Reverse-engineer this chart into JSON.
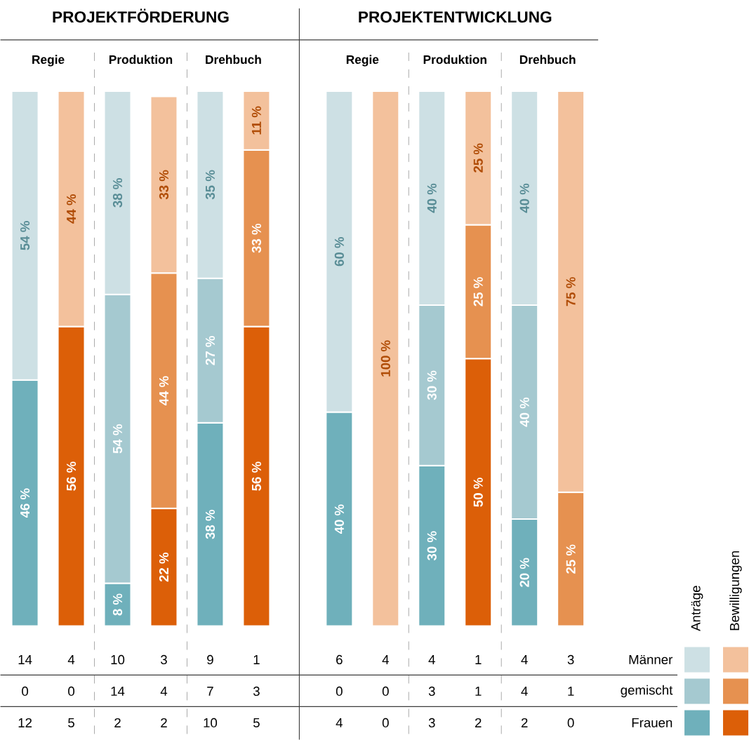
{
  "chart_data": [
    {
      "type": "bar",
      "title": "PROJEKTFÖRDERUNG",
      "stacked": true,
      "categories": [
        "Regie",
        null,
        "Produktion",
        null,
        "Drehbuch",
        null
      ],
      "ylim": [
        0,
        100
      ],
      "tick_labels": "x",
      "series": [
        {
          "color": "#6fb0bb",
          "values": [
            46,
            null,
            8,
            null,
            38,
            null
          ],
          "value_labels": [
            "46 %",
            null,
            "8 %",
            null,
            "38 %",
            null
          ]
        },
        {
          "color": "#dc5f08",
          "values": [
            null,
            56,
            null,
            22,
            null,
            56
          ],
          "value_labels": [
            null,
            "56 %",
            null,
            "22 %",
            null,
            "56 %"
          ]
        },
        {
          "color": "#a5c9d0",
          "values": [
            0,
            null,
            54,
            null,
            27,
            null
          ],
          "value_labels": [
            null,
            null,
            "54 %",
            null,
            "27 %",
            null
          ]
        },
        {
          "color": "#e69150",
          "values": [
            null,
            0,
            null,
            44,
            null,
            33
          ],
          "value_labels": [
            null,
            null,
            null,
            "44 %",
            null,
            "33 %"
          ]
        },
        {
          "color": "#cde0e4",
          "values": [
            54,
            null,
            38,
            null,
            35,
            null
          ],
          "value_labels": [
            "54 %",
            null,
            "38 %",
            null,
            "35 %",
            null
          ]
        },
        {
          "color": "#f3c19c",
          "values": [
            null,
            44,
            null,
            33,
            null,
            11
          ],
          "value_labels": [
            null,
            "44 %",
            null,
            "33 %",
            null,
            "11 %"
          ]
        }
      ],
      "annotations": [
        "14",
        "4",
        "10",
        "3",
        "9",
        "1",
        "0",
        "0",
        "14",
        "4",
        "7",
        "3",
        "12",
        "5",
        "2",
        "2",
        "10",
        "5"
      ]
    },
    {
      "type": "bar",
      "title": "PROJEKTENTWICKLUNG",
      "stacked": true,
      "categories": [
        "Regie",
        null,
        "Produktion",
        null,
        "Drehbuch",
        null
      ],
      "ylim": [
        0,
        100
      ],
      "tick_labels": "x",
      "legend": "bottom right",
      "series": [
        {
          "name": "Frauen",
          "color": "#6fb0bb",
          "values": [
            40,
            null,
            30,
            null,
            20,
            null
          ],
          "value_labels": [
            "40 %",
            null,
            "30 %",
            null,
            "20 %",
            null
          ]
        },
        {
          "color": "#dc5f08",
          "values": [
            null,
            0,
            null,
            50,
            null,
            0
          ],
          "value_labels": [
            null,
            null,
            null,
            "50 %",
            null,
            null
          ]
        },
        {
          "name": "gemischt",
          "color": "#a5c9d0",
          "values": [
            0,
            null,
            30,
            null,
            40,
            null
          ],
          "value_labels": [
            null,
            null,
            "30 %",
            null,
            "40 %",
            null
          ]
        },
        {
          "color": "#e69150",
          "values": [
            null,
            0,
            null,
            25,
            null,
            25
          ],
          "value_labels": [
            null,
            null,
            null,
            "25 %",
            null,
            "25 %"
          ]
        },
        {
          "name": "Männer",
          "color": "#cde0e4",
          "values": [
            60,
            null,
            40,
            null,
            40,
            null
          ],
          "value_labels": [
            "60 %",
            null,
            "40 %",
            null,
            "40 %",
            null
          ]
        },
        {
          "color": "#f3c19c",
          "values": [
            null,
            100,
            null,
            25,
            null,
            75
          ],
          "value_labels": [
            null,
            "100 %",
            null,
            "25 %",
            null,
            "75 %"
          ]
        }
      ],
      "annotations": [
        "6",
        "4",
        "4",
        "1",
        "4",
        "3",
        "0",
        "0",
        "3",
        "1",
        "4",
        "1",
        "4",
        "0",
        "3",
        "2",
        "2",
        "0",
        "Anträge",
        "Bewilligungen"
      ]
    }
  ]
}
